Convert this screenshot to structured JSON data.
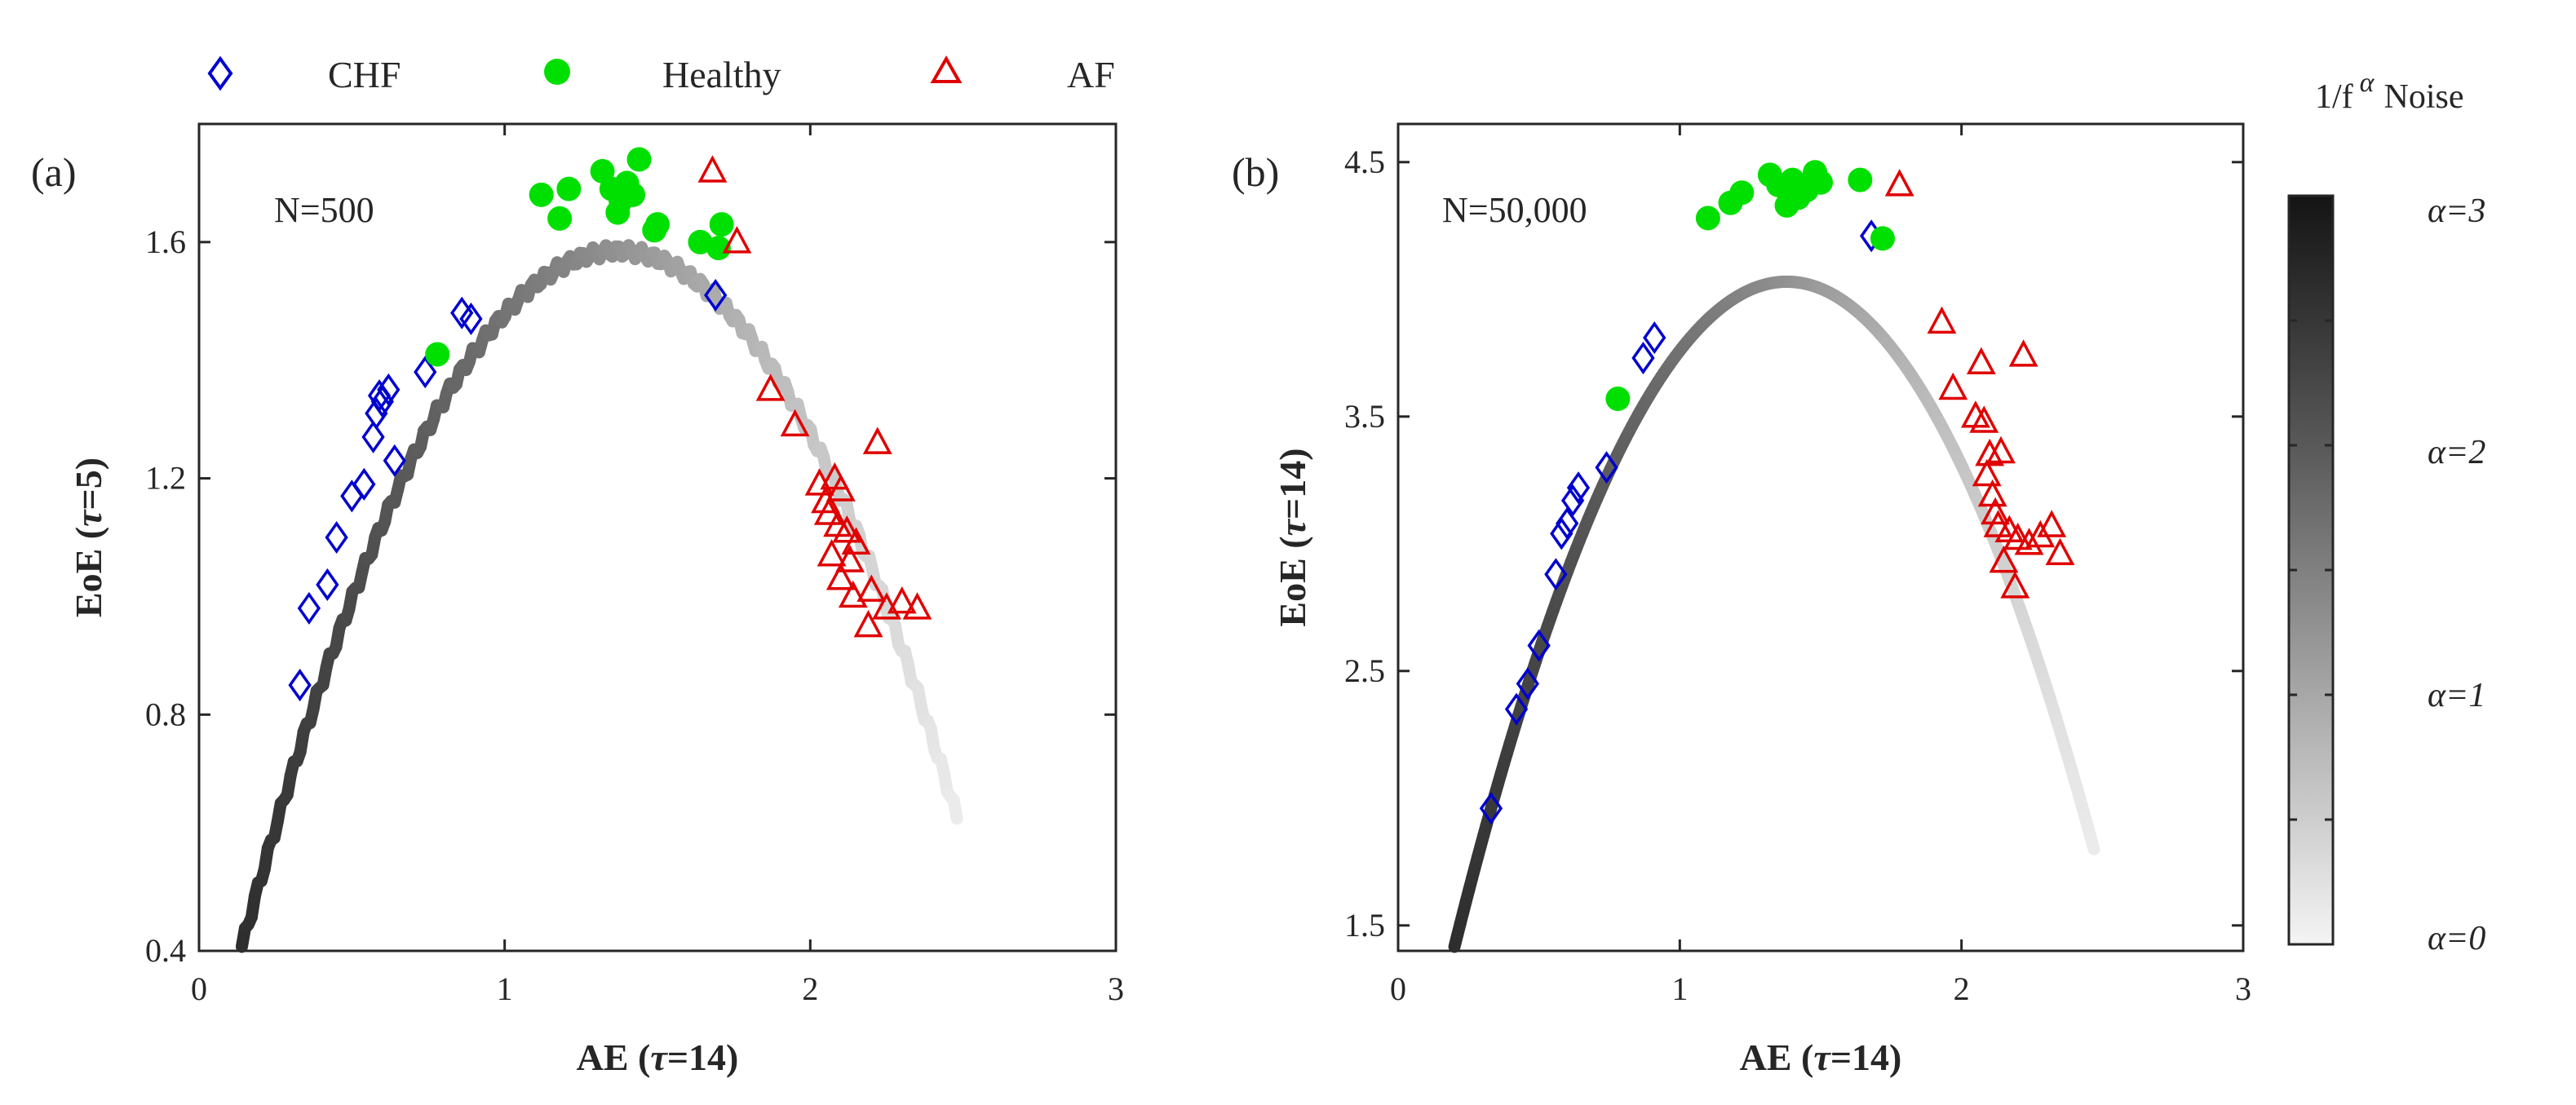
{
  "legend": {
    "items": [
      {
        "label": "CHF",
        "marker": "diamond",
        "color": "#0000d0"
      },
      {
        "label": "Healthy",
        "marker": "dot",
        "color": "#00e000"
      },
      {
        "label": "AF",
        "marker": "triangle",
        "color": "#e00000"
      }
    ]
  },
  "colorbar": {
    "title_base": "1/f",
    "title_exp": "α",
    "title_tail": "Noise",
    "labels": [
      "α=3",
      "α=2",
      "α=1",
      "α=0"
    ],
    "range": [
      0,
      3
    ]
  },
  "chart_data": [
    {
      "type": "scatter",
      "panel_label": "(a)",
      "annotation": "N=500",
      "xlabel_main": "AE (",
      "xlabel_sym": "τ",
      "xlabel_tail": "=14)",
      "ylabel_main": "EoE (",
      "ylabel_sym": "τ",
      "ylabel_tail": "=5)",
      "xlim": [
        0,
        3
      ],
      "ylim": [
        0.4,
        1.8
      ],
      "xticks": [
        0,
        1,
        2,
        3
      ],
      "yticks": [
        0.4,
        0.8,
        1.2,
        1.6
      ],
      "ytick_labels": [
        "0.4",
        "0.8",
        "1.2",
        "1.6"
      ],
      "grid": false,
      "noise_curve": {
        "name": "1/f noise",
        "peak_x": 1.37,
        "peak_y": 1.585,
        "x_start": 0.14,
        "x_end": 2.48,
        "jitter": true
      },
      "series": [
        {
          "name": "CHF",
          "marker": "diamond",
          "color": "#0000d0",
          "x": [
            0.33,
            0.36,
            0.42,
            0.45,
            0.5,
            0.54,
            0.57,
            0.58,
            0.59,
            0.6,
            0.62,
            0.64,
            0.74,
            0.86,
            0.89,
            1.69
          ],
          "y": [
            0.85,
            0.98,
            1.02,
            1.1,
            1.17,
            1.19,
            1.27,
            1.31,
            1.34,
            1.33,
            1.35,
            1.23,
            1.38,
            1.48,
            1.47,
            1.51
          ]
        },
        {
          "name": "Healthy",
          "marker": "dot",
          "color": "#00e000",
          "x": [
            0.78,
            1.12,
            1.18,
            1.21,
            1.32,
            1.35,
            1.37,
            1.38,
            1.4,
            1.42,
            1.44,
            1.49,
            1.5,
            1.64,
            1.7,
            1.71
          ],
          "y": [
            1.41,
            1.68,
            1.64,
            1.69,
            1.72,
            1.69,
            1.65,
            1.67,
            1.7,
            1.68,
            1.74,
            1.62,
            1.63,
            1.6,
            1.59,
            1.63
          ]
        },
        {
          "name": "AF",
          "marker": "triangle",
          "color": "#e00000",
          "x": [
            1.68,
            1.76,
            1.87,
            1.95,
            2.03,
            2.05,
            2.06,
            2.07,
            2.08,
            2.09,
            2.1,
            2.1,
            2.12,
            2.13,
            2.14,
            2.15,
            2.19,
            2.2,
            2.22,
            2.25,
            2.3,
            2.35
          ],
          "y": [
            1.72,
            1.6,
            1.35,
            1.29,
            1.19,
            1.16,
            1.14,
            1.07,
            1.2,
            1.12,
            1.18,
            1.03,
            1.11,
            1.06,
            1.0,
            1.09,
            0.95,
            1.01,
            1.26,
            0.98,
            0.99,
            0.98
          ]
        }
      ]
    },
    {
      "type": "scatter",
      "panel_label": "(b)",
      "annotation": "N=50,000",
      "xlabel_main": "AE (",
      "xlabel_sym": "τ",
      "xlabel_tail": "=14)",
      "ylabel_main": "EoE (",
      "ylabel_sym": "τ",
      "ylabel_tail": "=14)",
      "xlim": [
        0,
        3
      ],
      "ylim": [
        1.4,
        4.65
      ],
      "xticks": [
        0,
        1,
        2,
        3
      ],
      "yticks": [
        1.5,
        2.5,
        3.5,
        4.5
      ],
      "ytick_labels": [
        "1.5",
        "2.5",
        "3.5",
        "4.5"
      ],
      "grid": false,
      "noise_curve": {
        "name": "1/f noise",
        "peak_x": 1.38,
        "peak_y": 4.03,
        "x_start": 0.2,
        "x_end": 2.47,
        "jitter": false
      },
      "series": [
        {
          "name": "CHF",
          "marker": "diamond",
          "color": "#0000d0",
          "x": [
            0.33,
            0.42,
            0.46,
            0.5,
            0.56,
            0.58,
            0.6,
            0.62,
            0.64,
            0.74,
            0.87,
            0.91,
            1.68
          ],
          "y": [
            1.96,
            2.35,
            2.45,
            2.6,
            2.88,
            3.04,
            3.08,
            3.17,
            3.22,
            3.3,
            3.73,
            3.81,
            4.21
          ]
        },
        {
          "name": "Healthy",
          "marker": "dot",
          "color": "#00e000",
          "x": [
            0.78,
            1.1,
            1.18,
            1.22,
            1.32,
            1.35,
            1.38,
            1.4,
            1.42,
            1.45,
            1.48,
            1.5,
            1.64,
            1.72
          ],
          "y": [
            3.57,
            4.28,
            4.34,
            4.38,
            4.45,
            4.41,
            4.33,
            4.43,
            4.36,
            4.39,
            4.46,
            4.42,
            4.43,
            4.2
          ]
        },
        {
          "name": "AF",
          "marker": "triangle",
          "color": "#e00000",
          "x": [
            1.78,
            1.93,
            1.97,
            2.05,
            2.07,
            2.08,
            2.09,
            2.1,
            2.11,
            2.12,
            2.13,
            2.14,
            2.15,
            2.17,
            2.19,
            2.2,
            2.22,
            2.24,
            2.28,
            2.32,
            2.35
          ],
          "y": [
            4.41,
            3.87,
            3.61,
            3.5,
            3.71,
            3.48,
            3.27,
            3.35,
            3.19,
            3.12,
            3.07,
            3.36,
            2.93,
            3.05,
            2.83,
            3.02,
            3.74,
            3.0,
            3.03,
            3.07,
            2.96
          ]
        }
      ]
    }
  ]
}
